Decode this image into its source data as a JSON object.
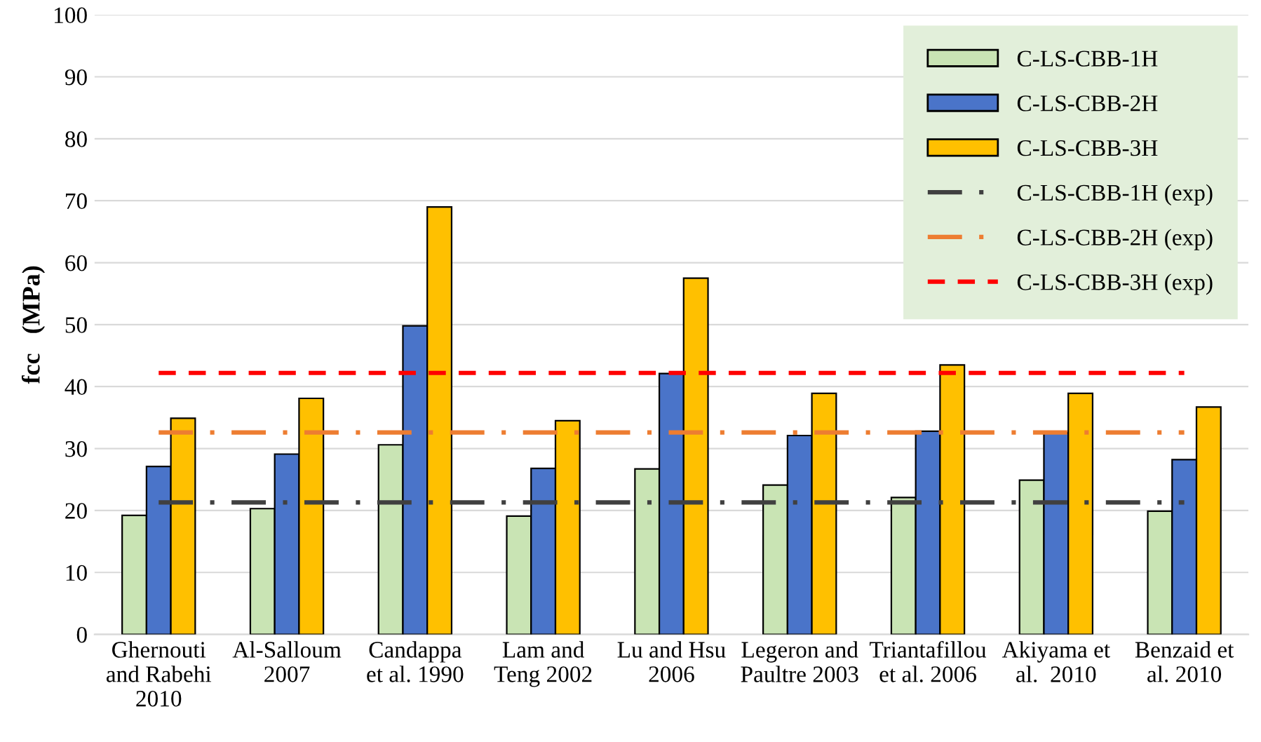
{
  "chart_data": {
    "type": "bar",
    "ylabel": "fcc   (MPa)",
    "categories": [
      "Ghernouti\nand Rabehi\n2010",
      "Al-Salloum\n2007",
      "Candappa\net al. 1990",
      "Lam and\nTeng 2002",
      "Lu and Hsu\n2006",
      "Legeron and\nPaultre 2003",
      "Triantafillou\net al. 2006",
      "Akiyama et\nal.  2010",
      "Benzaid et\nal. 2010"
    ],
    "series": [
      {
        "name": "C-LS-CBB-1H",
        "color": "#c9e4b4",
        "values": [
          19.2,
          20.3,
          30.6,
          19.1,
          26.7,
          24.1,
          22.1,
          24.9,
          19.9
        ]
      },
      {
        "name": "C-LS-CBB-2H",
        "color": "#4a74c9",
        "values": [
          27.1,
          29.1,
          49.8,
          26.8,
          42.1,
          32.1,
          32.8,
          32.5,
          28.2
        ]
      },
      {
        "name": "C-LS-CBB-3H",
        "color": "#ffc000",
        "values": [
          34.9,
          38.1,
          69.0,
          34.5,
          57.5,
          38.9,
          43.5,
          38.9,
          36.7
        ]
      },
      {
        "name": "C-LS-CBB-1H (exp)",
        "type": "line",
        "line_style": "dashdot",
        "color": "#404040",
        "values": [
          21.3,
          21.3,
          21.3,
          21.3,
          21.3,
          21.3,
          21.3,
          21.3,
          21.3
        ]
      },
      {
        "name": "C-LS-CBB-2H (exp)",
        "type": "line",
        "line_style": "dashdot",
        "color": "#ed7d31",
        "values": [
          32.6,
          32.6,
          32.6,
          32.6,
          32.6,
          32.6,
          32.6,
          32.6,
          32.6
        ]
      },
      {
        "name": "C-LS-CBB-3H (exp)",
        "type": "line",
        "line_style": "dashed",
        "color": "#ff0000",
        "values": [
          42.2,
          42.2,
          42.2,
          42.2,
          42.2,
          42.2,
          42.2,
          42.2,
          42.2
        ]
      }
    ],
    "ylim": [
      0,
      100
    ],
    "yticks": [
      0,
      10,
      20,
      30,
      40,
      50,
      60,
      70,
      80,
      90,
      100
    ],
    "grid": "y",
    "legend": "top right"
  }
}
